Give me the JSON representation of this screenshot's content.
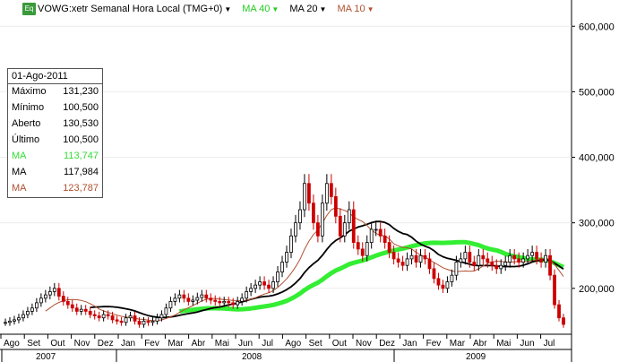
{
  "header": {
    "icon_label": "Eq",
    "title": "VOWG:xetr Semanal Hora Local (TMG+0)",
    "ma1": "MA 40",
    "ma2": "MA 20",
    "ma3": "MA 10"
  },
  "colors": {
    "ma40": "#33ee33",
    "ma20": "#000000",
    "ma10": "#b05030",
    "up": "#000000",
    "down": "#cc0000"
  },
  "info_box": {
    "date": "01-Ago-2011",
    "rows": [
      {
        "label": "Máximo",
        "value": "131,230",
        "color": "#000000"
      },
      {
        "label": "Mínimo",
        "value": "100,500",
        "color": "#000000"
      },
      {
        "label": "Aberto",
        "value": "130,530",
        "color": "#000000"
      },
      {
        "label": "Último",
        "value": "100,500",
        "color": "#000000"
      },
      {
        "label": "MA",
        "value": "113,747",
        "color": "#33dd33"
      },
      {
        "label": "MA",
        "value": "117,984",
        "color": "#000000"
      },
      {
        "label": "MA",
        "value": "123,787",
        "color": "#b05030"
      }
    ]
  },
  "chart_data": {
    "type": "candlestick",
    "ylim": [
      130,
      640
    ],
    "y_ticks": [
      "200,000",
      "300,000",
      "400,000",
      "500,000",
      "600,000"
    ],
    "y_tick_values": [
      200,
      300,
      400,
      500,
      600
    ],
    "months": [
      "Ago",
      "Set",
      "Out",
      "Nov",
      "Dez",
      "Jan",
      "Fev",
      "Mar",
      "Abr",
      "Mai",
      "Jun",
      "Jul",
      "Ago",
      "Set",
      "Out",
      "Nov",
      "Dez",
      "Jan",
      "Fev",
      "Mar",
      "Abr",
      "Mai",
      "Jun",
      "Jul"
    ],
    "years": [
      "2007",
      "2008",
      "2009"
    ],
    "closes": [
      148,
      150,
      152,
      155,
      160,
      165,
      170,
      178,
      185,
      190,
      195,
      200,
      188,
      180,
      175,
      170,
      165,
      168,
      165,
      160,
      158,
      155,
      160,
      158,
      152,
      150,
      148,
      155,
      158,
      150,
      145,
      150,
      148,
      150,
      155,
      160,
      170,
      180,
      185,
      190,
      185,
      180,
      182,
      186,
      190,
      185,
      182,
      180,
      178,
      180,
      178,
      175,
      180,
      185,
      195,
      200,
      205,
      210,
      205,
      200,
      210,
      225,
      240,
      255,
      280,
      300,
      320,
      360,
      330,
      300,
      280,
      330,
      360,
      340,
      310,
      280,
      300,
      320,
      270,
      260,
      250,
      270,
      290,
      290,
      280,
      270,
      255,
      245,
      240,
      235,
      245,
      250,
      240,
      250,
      245,
      230,
      215,
      205,
      200,
      210,
      220,
      240,
      245,
      255,
      240,
      235,
      250,
      245,
      240,
      235,
      230,
      235,
      240,
      250,
      245,
      240,
      245,
      250,
      255,
      245,
      240,
      250,
      220,
      175,
      155,
      145
    ]
  }
}
